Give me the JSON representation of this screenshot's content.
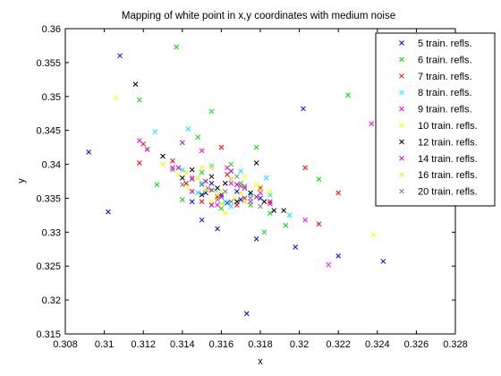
{
  "chart_data": {
    "type": "scatter",
    "title": "Mapping of white point in x,y coordinates with medium noise",
    "xlabel": "x",
    "ylabel": "y",
    "xlim": [
      0.308,
      0.328
    ],
    "ylim": [
      0.315,
      0.36
    ],
    "xticks": [
      "0.308",
      "0.31",
      "0.312",
      "0.314",
      "0.316",
      "0.318",
      "0.32",
      "0.322",
      "0.324",
      "0.326",
      "0.328"
    ],
    "yticks": [
      "0.315",
      "0.32",
      "0.325",
      "0.33",
      "0.335",
      "0.34",
      "0.345",
      "0.35",
      "0.355",
      "0.36"
    ],
    "grid": false,
    "legend_position": "top-right",
    "marker": "x",
    "series": [
      {
        "name": "5 train. refls.",
        "color": "#0000ff",
        "points": [
          [
            0.3092,
            0.3418
          ],
          [
            0.3108,
            0.356
          ],
          [
            0.3102,
            0.333
          ],
          [
            0.3145,
            0.3345
          ],
          [
            0.315,
            0.3318
          ],
          [
            0.316,
            0.3355
          ],
          [
            0.3165,
            0.3378
          ],
          [
            0.317,
            0.3348
          ],
          [
            0.318,
            0.335
          ],
          [
            0.3178,
            0.329
          ],
          [
            0.3173,
            0.318
          ],
          [
            0.3198,
            0.3278
          ],
          [
            0.3202,
            0.3482
          ],
          [
            0.322,
            0.3265
          ],
          [
            0.3243,
            0.3257
          ],
          [
            0.3158,
            0.3305
          ],
          [
            0.3163,
            0.3343
          ],
          [
            0.3155,
            0.3372
          ],
          [
            0.3168,
            0.336
          ],
          [
            0.3152,
            0.3358
          ]
        ]
      },
      {
        "name": "6 train. refls.",
        "color": "#00dd00",
        "points": [
          [
            0.3118,
            0.3495
          ],
          [
            0.3137,
            0.3573
          ],
          [
            0.3155,
            0.3478
          ],
          [
            0.3225,
            0.3502
          ],
          [
            0.321,
            0.3378
          ],
          [
            0.3193,
            0.331
          ],
          [
            0.3182,
            0.33
          ],
          [
            0.3165,
            0.34
          ],
          [
            0.3178,
            0.3425
          ],
          [
            0.3148,
            0.344
          ],
          [
            0.314,
            0.3348
          ],
          [
            0.3158,
            0.3365
          ],
          [
            0.317,
            0.3372
          ],
          [
            0.3127,
            0.337
          ],
          [
            0.316,
            0.3335
          ],
          [
            0.3185,
            0.3328
          ],
          [
            0.315,
            0.3388
          ],
          [
            0.3175,
            0.334
          ]
        ]
      },
      {
        "name": "7 train. refls.",
        "color": "#ff0000",
        "points": [
          [
            0.3118,
            0.3402
          ],
          [
            0.312,
            0.343
          ],
          [
            0.3203,
            0.3395
          ],
          [
            0.322,
            0.3358
          ],
          [
            0.321,
            0.3312
          ],
          [
            0.316,
            0.3425
          ],
          [
            0.3168,
            0.334
          ],
          [
            0.3142,
            0.3372
          ],
          [
            0.3155,
            0.3362
          ],
          [
            0.3172,
            0.335
          ],
          [
            0.315,
            0.3345
          ],
          [
            0.318,
            0.3365
          ],
          [
            0.3163,
            0.3385
          ],
          [
            0.3185,
            0.3345
          ],
          [
            0.3135,
            0.3405
          ],
          [
            0.3158,
            0.3352
          ]
        ]
      },
      {
        "name": "8 train. refls.",
        "color": "#00eeff",
        "points": [
          [
            0.3126,
            0.3448
          ],
          [
            0.3143,
            0.3452
          ],
          [
            0.3157,
            0.3362
          ],
          [
            0.317,
            0.339
          ],
          [
            0.3183,
            0.338
          ],
          [
            0.3195,
            0.3325
          ],
          [
            0.315,
            0.3372
          ],
          [
            0.3162,
            0.3345
          ],
          [
            0.3175,
            0.3355
          ],
          [
            0.314,
            0.3392
          ],
          [
            0.3165,
            0.3338
          ],
          [
            0.3155,
            0.3398
          ],
          [
            0.3185,
            0.3355
          ],
          [
            0.3148,
            0.3358
          ]
        ]
      },
      {
        "name": "9 train. refls.",
        "color": "#ff00ff",
        "points": [
          [
            0.3118,
            0.3435
          ],
          [
            0.3237,
            0.346
          ],
          [
            0.3215,
            0.3252
          ],
          [
            0.3203,
            0.3318
          ],
          [
            0.315,
            0.342
          ],
          [
            0.3163,
            0.3395
          ],
          [
            0.317,
            0.3368
          ],
          [
            0.3145,
            0.338
          ],
          [
            0.3158,
            0.334
          ],
          [
            0.318,
            0.3358
          ],
          [
            0.3135,
            0.3395
          ],
          [
            0.3165,
            0.3372
          ],
          [
            0.3175,
            0.3345
          ]
        ]
      },
      {
        "name": "10 train. refls.",
        "color": "#ffff00",
        "points": [
          [
            0.3106,
            0.3498
          ],
          [
            0.3238,
            0.3296
          ],
          [
            0.315,
            0.3395
          ],
          [
            0.316,
            0.336
          ],
          [
            0.3172,
            0.3382
          ],
          [
            0.3143,
            0.3365
          ],
          [
            0.3155,
            0.3345
          ],
          [
            0.3167,
            0.335
          ],
          [
            0.3178,
            0.337
          ],
          [
            0.3138,
            0.3385
          ],
          [
            0.3162,
            0.3328
          ],
          [
            0.3185,
            0.336
          ]
        ]
      },
      {
        "name": "12 train. refls.",
        "color": "#000000",
        "points": [
          [
            0.3116,
            0.3518
          ],
          [
            0.313,
            0.3412
          ],
          [
            0.3145,
            0.3392
          ],
          [
            0.3162,
            0.3372
          ],
          [
            0.3178,
            0.3402
          ],
          [
            0.3187,
            0.3332
          ],
          [
            0.3192,
            0.3332
          ],
          [
            0.315,
            0.3355
          ],
          [
            0.3168,
            0.3345
          ],
          [
            0.314,
            0.338
          ],
          [
            0.3158,
            0.3365
          ],
          [
            0.3175,
            0.3358
          ],
          [
            0.3155,
            0.3382
          ],
          [
            0.3182,
            0.3345
          ]
        ]
      },
      {
        "name": "14 train. refls.",
        "color": "#bb00bb",
        "points": [
          [
            0.3122,
            0.3422
          ],
          [
            0.314,
            0.3432
          ],
          [
            0.3172,
            0.3365
          ],
          [
            0.3185,
            0.3342
          ],
          [
            0.3152,
            0.3375
          ],
          [
            0.316,
            0.3352
          ],
          [
            0.3165,
            0.339
          ],
          [
            0.3145,
            0.336
          ],
          [
            0.3178,
            0.3352
          ],
          [
            0.3155,
            0.334
          ],
          [
            0.3168,
            0.337
          ],
          [
            0.3138,
            0.3395
          ]
        ]
      },
      {
        "name": "16 train. refls.",
        "color": "#eeee00",
        "points": [
          [
            0.313,
            0.34
          ],
          [
            0.3148,
            0.338
          ],
          [
            0.3158,
            0.3355
          ],
          [
            0.3172,
            0.3345
          ],
          [
            0.3165,
            0.3378
          ],
          [
            0.3152,
            0.3362
          ],
          [
            0.318,
            0.3362
          ],
          [
            0.3142,
            0.3388
          ],
          [
            0.316,
            0.3342
          ],
          [
            0.317,
            0.3358
          ],
          [
            0.3155,
            0.3395
          ]
        ]
      },
      {
        "name": "20 train. refls.",
        "color": "#808080",
        "points": [
          [
            0.3135,
            0.3392
          ],
          [
            0.315,
            0.337
          ],
          [
            0.3162,
            0.336
          ],
          [
            0.3175,
            0.335
          ],
          [
            0.3145,
            0.3378
          ],
          [
            0.3158,
            0.3348
          ],
          [
            0.3168,
            0.3382
          ],
          [
            0.318,
            0.3338
          ],
          [
            0.3153,
            0.3365
          ],
          [
            0.3165,
            0.3345
          ],
          [
            0.314,
            0.337
          ],
          [
            0.3172,
            0.3368
          ]
        ]
      }
    ]
  }
}
